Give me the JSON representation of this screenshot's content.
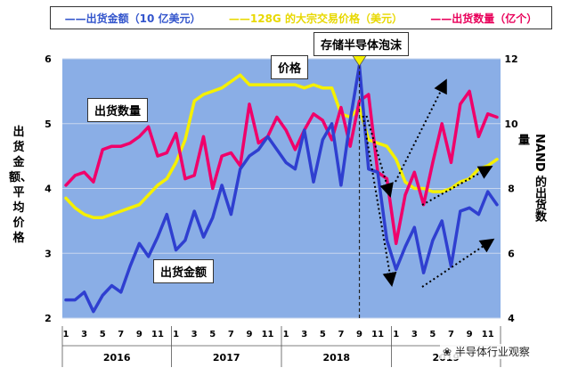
{
  "legend": {
    "shipment_value": "——出货金额（10 亿美元）",
    "bulk_price": "——128G 的大宗交易价格（美元）",
    "shipment_volume": "——出货数量（亿个）"
  },
  "colors": {
    "value": "#2f3fd0",
    "price": "#f5f000",
    "volume": "#f0006a",
    "plot_bg": "#8aaee6"
  },
  "chart_data": {
    "type": "line",
    "months": [
      "1",
      "2",
      "3",
      "4",
      "5",
      "6",
      "7",
      "8",
      "9",
      "10",
      "11",
      "12",
      "1",
      "2",
      "3",
      "4",
      "5",
      "6",
      "7",
      "8",
      "9",
      "10",
      "11",
      "12",
      "1",
      "2",
      "3",
      "4",
      "5",
      "6",
      "7",
      "8",
      "9",
      "10",
      "11",
      "12",
      "1",
      "2",
      "3",
      "4",
      "5",
      "6",
      "7",
      "8",
      "9",
      "10",
      "11",
      "12"
    ],
    "month_tick_labels": [
      "1",
      "3",
      "5",
      "7",
      "9",
      "11",
      "1",
      "3",
      "5",
      "7",
      "9",
      "11",
      "1",
      "3",
      "5",
      "7",
      "9",
      "11",
      "1",
      "3",
      "5",
      "7",
      "9",
      "11"
    ],
    "years": [
      "2016",
      "2017",
      "2018",
      "2019"
    ],
    "ylim_left": [
      2,
      6
    ],
    "ylim_right": [
      4,
      12
    ],
    "yticks_left": [
      "2",
      "3",
      "4",
      "5",
      "6"
    ],
    "yticks_right": [
      "4",
      "6",
      "8",
      "10",
      "12"
    ],
    "ylabel_left": "出货金额、平均价格",
    "ylabel_right": "NAND 的出货数量",
    "series": [
      {
        "name": "出货金额（10 亿美元）",
        "axis": "left",
        "values": [
          2.28,
          2.28,
          2.4,
          2.1,
          2.35,
          2.5,
          2.4,
          2.8,
          3.15,
          2.95,
          3.25,
          3.6,
          3.05,
          3.2,
          3.65,
          3.25,
          3.55,
          4.05,
          3.6,
          4.3,
          4.5,
          4.6,
          4.8,
          4.6,
          4.4,
          4.3,
          4.9,
          4.1,
          4.75,
          5.0,
          4.05,
          5.05,
          5.9,
          4.3,
          4.25,
          3.2,
          2.75,
          3.1,
          3.4,
          2.7,
          3.2,
          3.5,
          2.8,
          3.65,
          3.7,
          3.6,
          3.95,
          3.75
        ]
      },
      {
        "name": "128G 的大宗交易价格（美元）",
        "axis": "left",
        "values": [
          3.85,
          3.7,
          3.6,
          3.55,
          3.55,
          3.6,
          3.65,
          3.7,
          3.75,
          3.9,
          4.05,
          4.15,
          4.4,
          4.75,
          5.35,
          5.45,
          5.5,
          5.55,
          5.65,
          5.75,
          5.6,
          5.6,
          5.6,
          5.6,
          5.6,
          5.6,
          5.55,
          5.6,
          5.55,
          5.55,
          5.15,
          5.1,
          5.25,
          4.75,
          4.7,
          4.65,
          4.45,
          4.1,
          4.0,
          4.0,
          3.95,
          3.95,
          4.0,
          4.1,
          4.15,
          4.3,
          4.35,
          4.45
        ]
      },
      {
        "name": "出货数量（亿个）",
        "axis": "right",
        "values": [
          8.1,
          8.4,
          8.5,
          8.2,
          9.2,
          9.3,
          9.3,
          9.4,
          9.6,
          9.9,
          9.0,
          9.1,
          9.7,
          8.3,
          8.4,
          9.6,
          8.0,
          9.0,
          9.1,
          8.7,
          10.6,
          9.4,
          9.6,
          10.2,
          9.8,
          9.2,
          9.8,
          10.3,
          10.1,
          9.5,
          10.5,
          9.3,
          10.7,
          10.9,
          8.5,
          8.3,
          6.3,
          7.8,
          8.5,
          7.5,
          8.8,
          10.0,
          8.8,
          10.6,
          11.0,
          9.6,
          10.3,
          10.2
        ]
      }
    ],
    "annotations": {
      "storage_bubble": "存储半导体泡沫",
      "price": "价格",
      "shipment_volume": "出货数量",
      "shipment_value": "出货金额"
    }
  },
  "watermark": "半导体行业观察"
}
